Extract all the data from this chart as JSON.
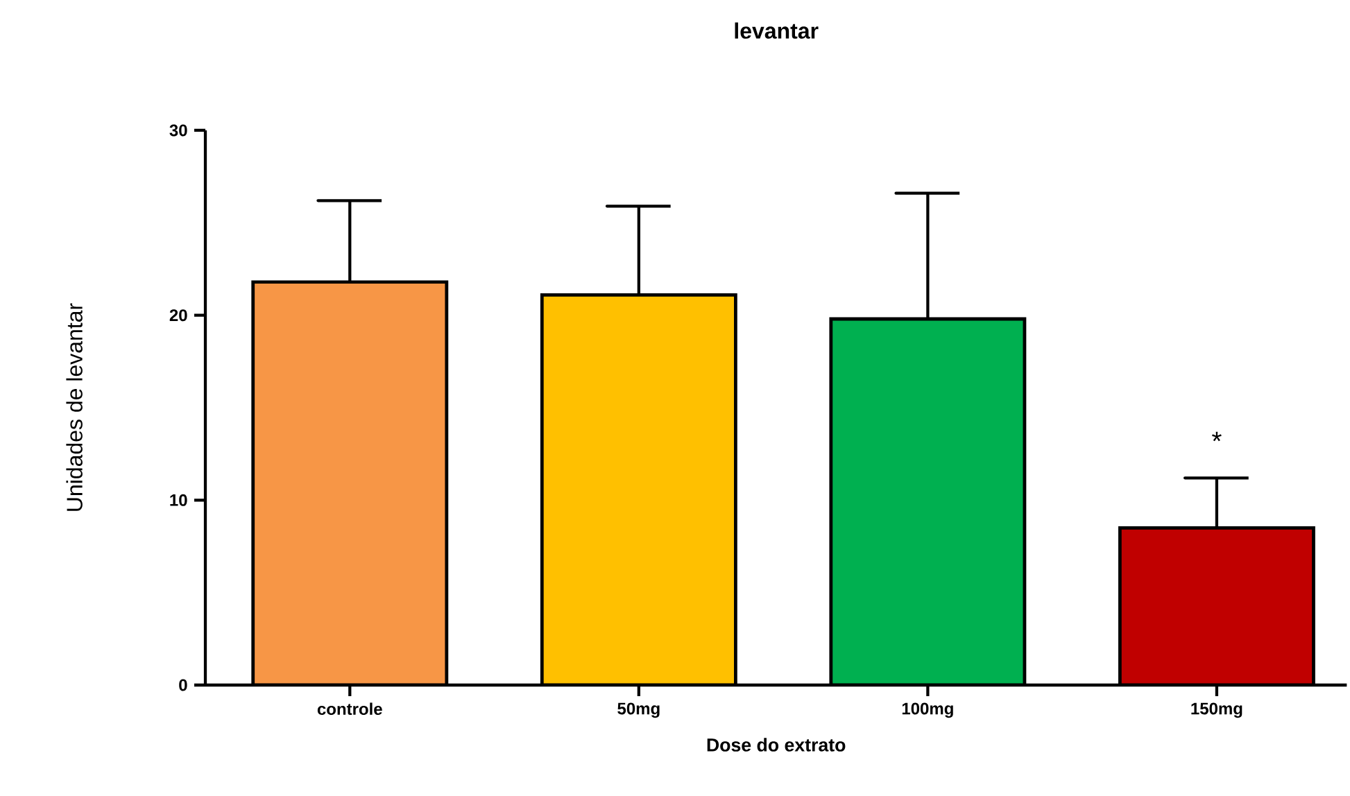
{
  "chart_data": {
    "type": "bar",
    "title": "levantar",
    "xlabel": "Dose do extrato",
    "ylabel": "Unidades de levantar",
    "categories": [
      "controle",
      "50mg",
      "100mg",
      "150mg"
    ],
    "values": [
      21.8,
      21.1,
      19.8,
      8.5
    ],
    "colors": [
      "#f79646",
      "#ffc000",
      "#00b050",
      "#c00000"
    ],
    "errors": [
      [
        21.8,
        26.2
      ],
      [
        21.1,
        25.9
      ],
      [
        19.8,
        26.6
      ],
      [
        8.5,
        11.2
      ]
    ],
    "ylim": [
      0,
      30
    ],
    "yticks": [
      0,
      10,
      20,
      30
    ],
    "annotations": [
      "*"
    ]
  }
}
